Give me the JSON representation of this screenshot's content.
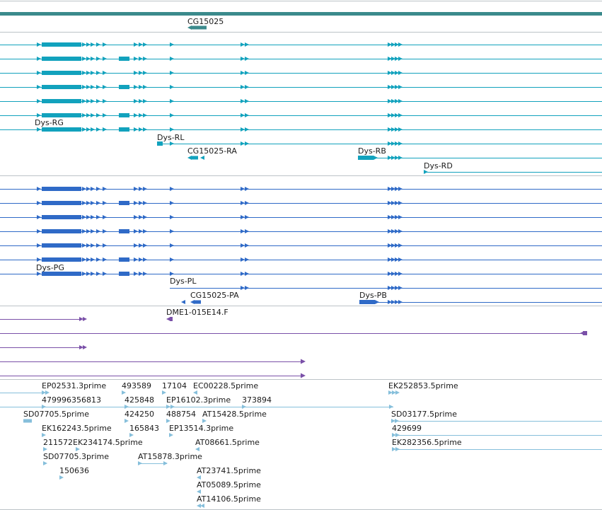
{
  "colors": {
    "gene_track": "#3b8a8c",
    "transcript_a": "#12a2bd",
    "transcript_b": "#2f6ac7",
    "est": "#7a50a8",
    "cdna": "#86bfdb",
    "divider": "#bcc3c7"
  },
  "gene": {
    "label": "CG15025"
  },
  "transcripts_a": {
    "labels": [
      "Dys-RG",
      "Dys-RL",
      "CG15025-RA",
      "Dys-RB",
      "Dys-RD"
    ]
  },
  "transcripts_b": {
    "labels": [
      "Dys-PG",
      "Dys-PL",
      "CG15025-PA",
      "Dys-PB"
    ]
  },
  "est": {
    "labels": [
      "DME1-015E14.F"
    ]
  },
  "cdna": {
    "labels": [
      "EP02531.3prime",
      "493589",
      "17104",
      "EC00228.5prime",
      "EK252853.5prime",
      "479996356813",
      "425848",
      "EP16102.3prime",
      "373894",
      "SD07705.5prime",
      "424250",
      "488754",
      "AT15428.5prime",
      "SD03177.5prime",
      "EK162243.5prime",
      "165843",
      "EP13514.3prime",
      "429699",
      "211572EK234174.5prime",
      "AT08661.5prime",
      "EK282356.5prime",
      "SD07705.3prime",
      "AT15878.3prime",
      "150636",
      "AT23741.5prime",
      "AT05089.5prime",
      "AT14106.5prime"
    ]
  }
}
